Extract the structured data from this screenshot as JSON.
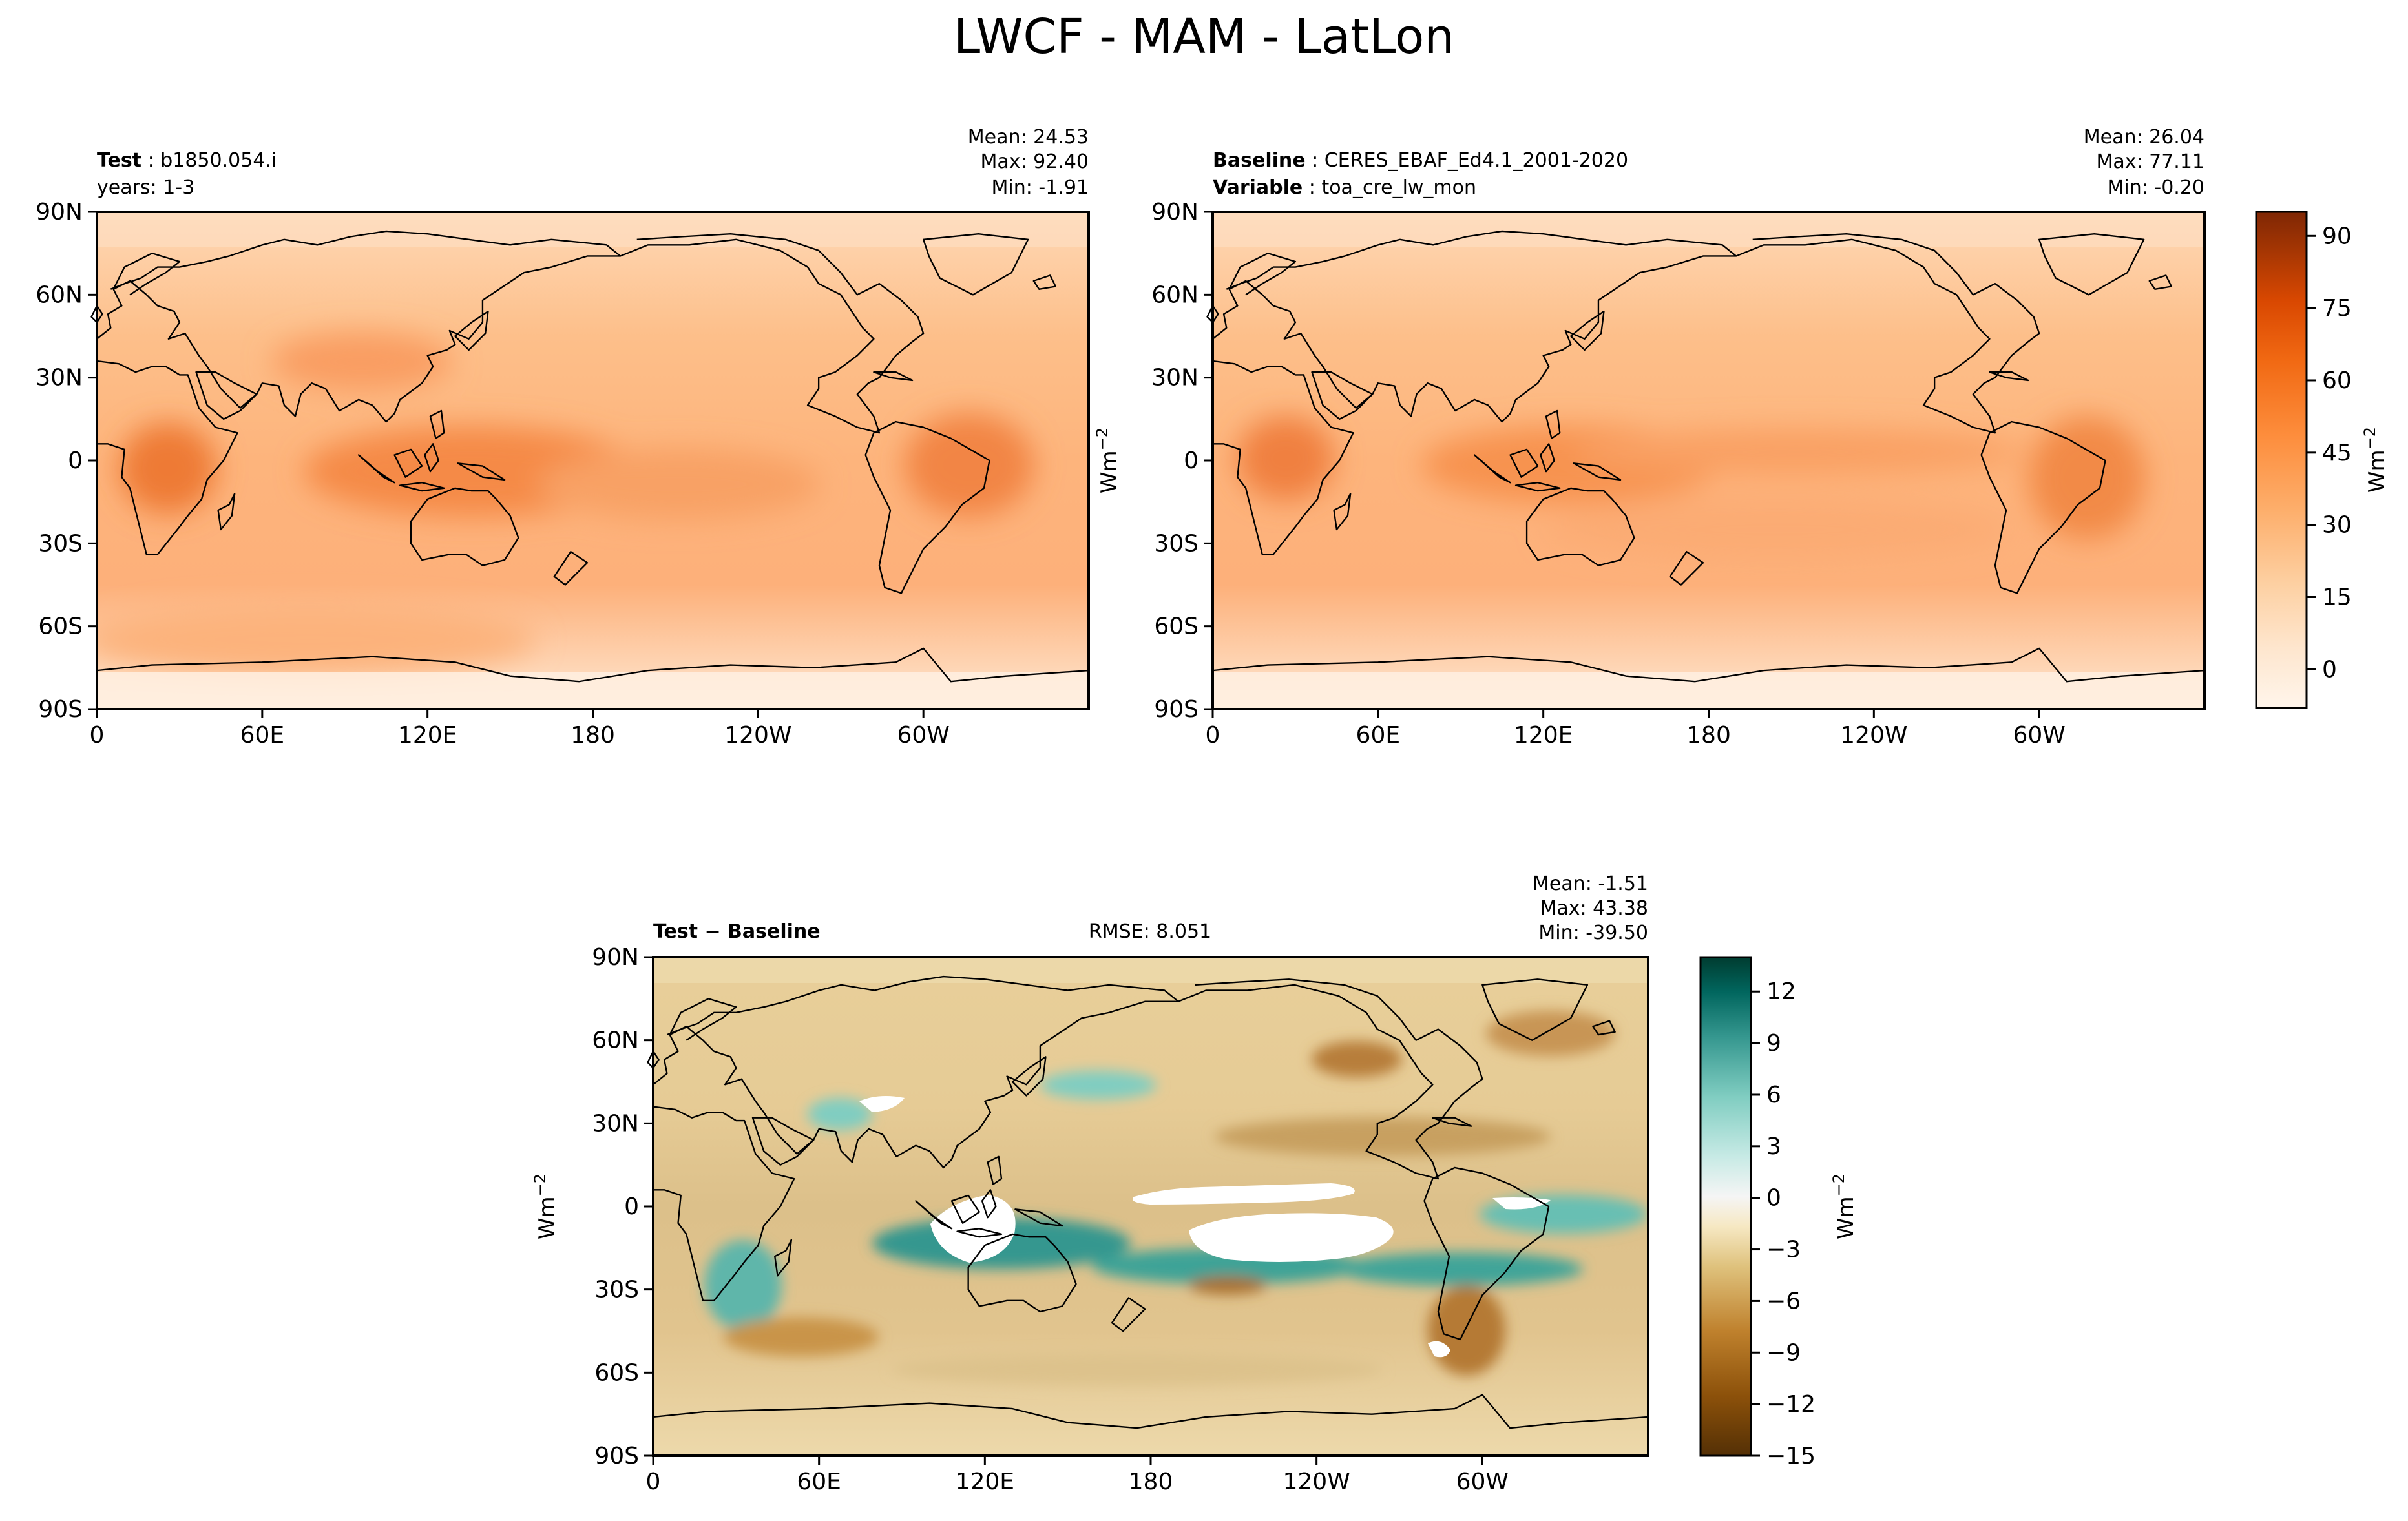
{
  "figure": {
    "title": "LWCF - MAM - LatLon"
  },
  "colors": {
    "oranges": [
      "#fff5eb",
      "#fee6ce",
      "#fdd0a2",
      "#fdae6b",
      "#fd8d3c",
      "#f16913",
      "#d94801",
      "#a63603",
      "#7f2704"
    ],
    "diff": [
      "#543005",
      "#8c510a",
      "#bf812d",
      "#dfc27d",
      "#f6e8c3",
      "#f5f5f5",
      "#c7eae5",
      "#80cdc1",
      "#35978f",
      "#01665e",
      "#003c30"
    ],
    "land_outline": "#000000",
    "out_of_range": "#ffffff"
  },
  "chart_data": [
    {
      "type": "heatmap",
      "panel": "test",
      "header": [
        {
          "bold": "Test",
          "text": "b1850.054.i"
        },
        {
          "bold": "",
          "text": "years: 1-3"
        }
      ],
      "stats": [
        "Mean: 24.53",
        "Max: 92.40",
        "Min: -1.91"
      ],
      "x_ticks": [
        "0",
        "60E",
        "120E",
        "180",
        "120W",
        "60W"
      ],
      "y_ticks": [
        "90N",
        "60N",
        "30N",
        "0",
        "30S",
        "60S",
        "90S"
      ],
      "xlim": [
        0,
        360
      ],
      "ylim": [
        -90,
        90
      ],
      "colormap": "oranges"
    },
    {
      "type": "heatmap",
      "panel": "baseline",
      "header": [
        {
          "bold": "Baseline",
          "text": "CERES_EBAF_Ed4.1_2001-2020"
        },
        {
          "bold": "Variable",
          "text": "toa_cre_lw_mon"
        }
      ],
      "stats": [
        "Mean: 26.04",
        "Max: 77.11",
        "Min: -0.20"
      ],
      "x_ticks": [
        "0",
        "60E",
        "120E",
        "180",
        "120W",
        "60W"
      ],
      "y_ticks": [
        "90N",
        "60N",
        "30N",
        "0",
        "30S",
        "60S",
        "90S"
      ],
      "xlim": [
        0,
        360
      ],
      "ylim": [
        -90,
        90
      ],
      "colormap": "oranges",
      "colorbar": {
        "label": "Wm",
        "label_sup": "−2",
        "ticks": [
          0,
          15,
          30,
          45,
          60,
          75,
          90
        ],
        "range": [
          -8,
          95
        ]
      }
    },
    {
      "type": "heatmap",
      "panel": "difference",
      "header": [
        {
          "bold": "Test − Baseline",
          "text": ""
        }
      ],
      "rmse": "RMSE: 8.051",
      "stats": [
        "Mean: -1.51",
        "Max: 43.38",
        "Min: -39.50"
      ],
      "x_ticks": [
        "0",
        "60E",
        "120E",
        "180",
        "120W",
        "60W"
      ],
      "y_ticks": [
        "90N",
        "60N",
        "30N",
        "0",
        "30S",
        "60S",
        "90S"
      ],
      "xlim": [
        0,
        360
      ],
      "ylim": [
        -90,
        90
      ],
      "colormap": "diff",
      "colorbar": {
        "label": "Wm",
        "label_sup": "−2",
        "ticks": [
          12,
          9,
          6,
          3,
          0,
          -3,
          -6,
          -9,
          -12,
          -15
        ],
        "range": [
          -15,
          14
        ]
      }
    }
  ]
}
